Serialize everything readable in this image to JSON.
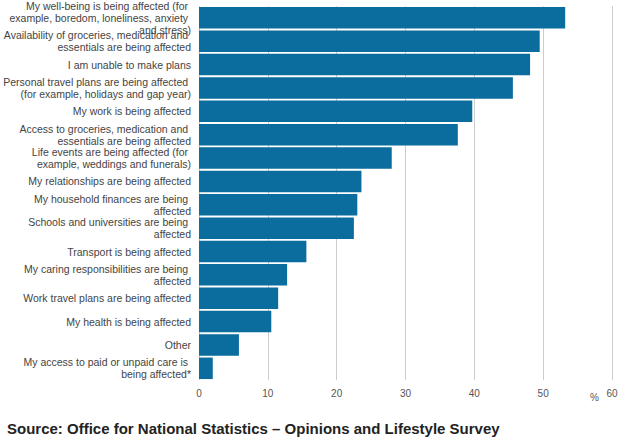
{
  "chart_data": {
    "type": "bar",
    "orientation": "horizontal",
    "caption": "Source: Office for National Statistics – Opinions and Lifestyle Survey",
    "xlabel": "%",
    "categories": [
      "My well-being is being affected (for example, boredom, loneliness, anxiety and stress)",
      "Availability of groceries, medication and essentials are being affected",
      "I am unable to make plans",
      "Personal travel plans are being affected (for example, holidays and gap year)",
      "My work is being affected",
      "Access to groceries, medication and essentials are being affected",
      "Life events are being affected (for example, weddings and funerals)",
      "My relationships are being affected",
      "My household finances are being affected",
      "Schools and universities are being affected",
      "Transport is being affected",
      "My caring responsibilities are being affected",
      "Work travel plans are being affected",
      "My health is being affected",
      "Other",
      "My access to paid or unpaid care is being affected*"
    ],
    "values": [
      53.2,
      49.5,
      48.1,
      45.6,
      39.7,
      37.6,
      28.0,
      23.6,
      23.0,
      22.5,
      15.6,
      12.8,
      11.5,
      10.5,
      5.8,
      2.0
    ],
    "color": "#0b6c9e",
    "xlim": [
      0,
      60
    ],
    "xticks": [
      0,
      10,
      20,
      30,
      40,
      50,
      60
    ],
    "grid": true
  }
}
